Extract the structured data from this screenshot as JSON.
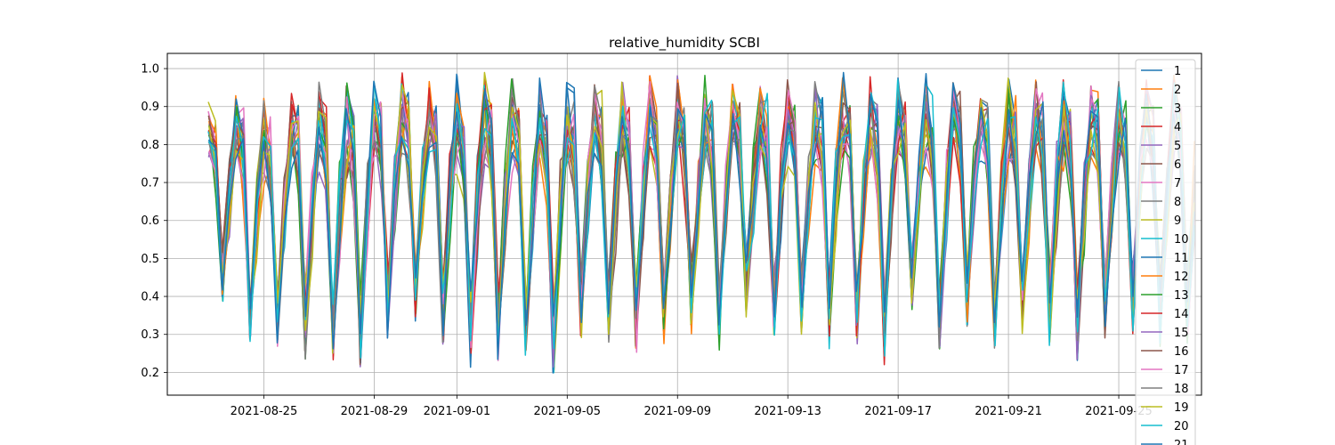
{
  "chart_data": {
    "type": "line",
    "title": "relative_humidity SCBI",
    "xlabel": "",
    "ylabel": "",
    "grid": true,
    "legend_position": "right",
    "x_tick_labels": [
      "2021-08-25",
      "2021-08-29",
      "2021-09-01",
      "2021-09-05",
      "2021-09-09",
      "2021-09-13",
      "2021-09-17",
      "2021-09-21",
      "2021-09-25"
    ],
    "y_tick_labels": [
      "0.2",
      "0.3",
      "0.4",
      "0.5",
      "0.6",
      "0.7",
      "0.8",
      "0.9",
      "1.0"
    ],
    "xlim": [
      "2021-08-21T12:00",
      "2021-09-28T00:00"
    ],
    "ylim": [
      0.14,
      1.04
    ],
    "sample_interval_hours": 6,
    "series_start": "2021-08-23T00:00",
    "series_end": "2021-09-27T18:00",
    "daily_pattern_note": "each series samples 4x per day; values repeat a daily cycle of night-high and afternoon-low humidity",
    "daily_min": [
      0.36,
      0.27,
      0.25,
      0.23,
      0.22,
      0.21,
      0.29,
      0.32,
      0.26,
      0.2,
      0.23,
      0.22,
      0.18,
      0.29,
      0.26,
      0.25,
      0.27,
      0.3,
      0.25,
      0.34,
      0.28,
      0.3,
      0.25,
      0.26,
      0.22,
      0.35,
      0.24,
      0.32,
      0.26,
      0.3,
      0.26,
      0.22,
      0.28,
      0.3,
      0.26,
      0.27
    ],
    "daily_max": [
      0.93,
      0.95,
      0.93,
      0.95,
      0.98,
      0.98,
      0.99,
      0.99,
      0.99,
      0.99,
      0.99,
      0.99,
      0.99,
      0.99,
      0.99,
      0.99,
      0.99,
      0.99,
      0.99,
      0.99,
      0.99,
      0.99,
      0.99,
      0.99,
      0.99,
      0.99,
      0.99,
      0.99,
      0.99,
      0.99,
      0.99,
      0.99,
      0.99,
      0.99,
      0.99,
      0.99
    ],
    "series": [
      {
        "name": "1",
        "color": "#1f77b4"
      },
      {
        "name": "2",
        "color": "#ff7f0e"
      },
      {
        "name": "3",
        "color": "#2ca02c"
      },
      {
        "name": "4",
        "color": "#d62728"
      },
      {
        "name": "5",
        "color": "#9467bd"
      },
      {
        "name": "6",
        "color": "#8c564b"
      },
      {
        "name": "7",
        "color": "#e377c2"
      },
      {
        "name": "8",
        "color": "#7f7f7f"
      },
      {
        "name": "9",
        "color": "#bcbd22"
      },
      {
        "name": "10",
        "color": "#17becf"
      },
      {
        "name": "11",
        "color": "#1f77b4"
      },
      {
        "name": "12",
        "color": "#ff7f0e"
      },
      {
        "name": "13",
        "color": "#2ca02c"
      },
      {
        "name": "14",
        "color": "#d62728"
      },
      {
        "name": "15",
        "color": "#9467bd"
      },
      {
        "name": "16",
        "color": "#8c564b"
      },
      {
        "name": "17",
        "color": "#e377c2"
      },
      {
        "name": "18",
        "color": "#7f7f7f"
      },
      {
        "name": "19",
        "color": "#bcbd22"
      },
      {
        "name": "20",
        "color": "#17becf"
      },
      {
        "name": "21",
        "color": "#1f77b4"
      }
    ]
  }
}
